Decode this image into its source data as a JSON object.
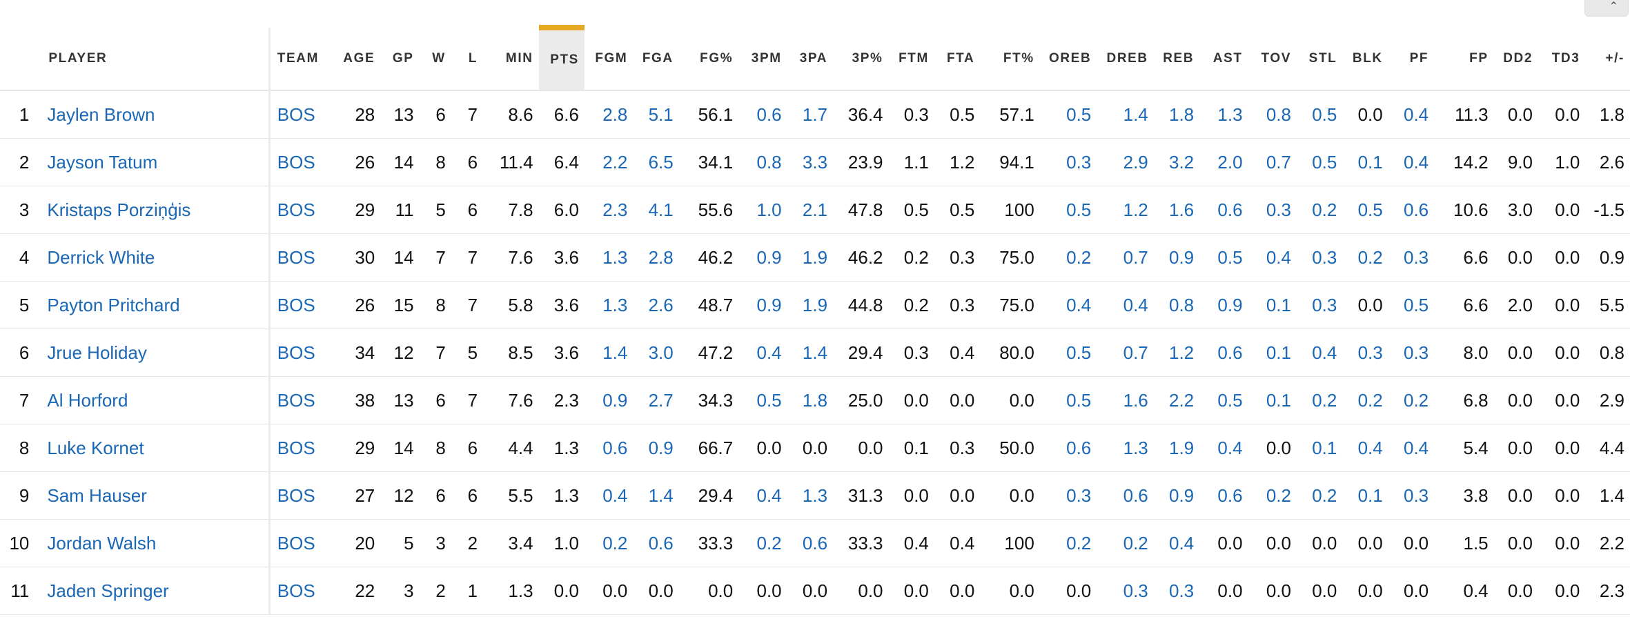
{
  "columns": [
    "",
    "PLAYER",
    "TEAM",
    "AGE",
    "GP",
    "W",
    "L",
    "MIN",
    "PTS",
    "FGM",
    "FGA",
    "FG%",
    "3PM",
    "3PA",
    "3P%",
    "FTM",
    "FTA",
    "FT%",
    "OREB",
    "DREB",
    "REB",
    "AST",
    "TOV",
    "STL",
    "BLK",
    "PF",
    "FP",
    "DD2",
    "TD3",
    "+/-"
  ],
  "sorted_column": "PTS",
  "colors": {
    "link": "#1a67b5",
    "sort_accent": "#e5a823",
    "sorted_bg": "#ebebeb"
  },
  "rows": [
    [
      "1",
      "Jaylen Brown",
      "BOS",
      "28",
      "13",
      "6",
      "7",
      "8.6",
      "6.6",
      "2.8",
      "5.1",
      "56.1",
      "0.6",
      "1.7",
      "36.4",
      "0.3",
      "0.5",
      "57.1",
      "0.5",
      "1.4",
      "1.8",
      "1.3",
      "0.8",
      "0.5",
      "0.0",
      "0.4",
      "11.3",
      "0.0",
      "0.0",
      "1.8"
    ],
    [
      "2",
      "Jayson Tatum",
      "BOS",
      "26",
      "14",
      "8",
      "6",
      "11.4",
      "6.4",
      "2.2",
      "6.5",
      "34.1",
      "0.8",
      "3.3",
      "23.9",
      "1.1",
      "1.2",
      "94.1",
      "0.3",
      "2.9",
      "3.2",
      "2.0",
      "0.7",
      "0.5",
      "0.1",
      "0.4",
      "14.2",
      "9.0",
      "1.0",
      "2.6"
    ],
    [
      "3",
      "Kristaps Porziņģis",
      "BOS",
      "29",
      "11",
      "5",
      "6",
      "7.8",
      "6.0",
      "2.3",
      "4.1",
      "55.6",
      "1.0",
      "2.1",
      "47.8",
      "0.5",
      "0.5",
      "100",
      "0.5",
      "1.2",
      "1.6",
      "0.6",
      "0.3",
      "0.2",
      "0.5",
      "0.6",
      "10.6",
      "3.0",
      "0.0",
      "-1.5"
    ],
    [
      "4",
      "Derrick White",
      "BOS",
      "30",
      "14",
      "7",
      "7",
      "7.6",
      "3.6",
      "1.3",
      "2.8",
      "46.2",
      "0.9",
      "1.9",
      "46.2",
      "0.2",
      "0.3",
      "75.0",
      "0.2",
      "0.7",
      "0.9",
      "0.5",
      "0.4",
      "0.3",
      "0.2",
      "0.3",
      "6.6",
      "0.0",
      "0.0",
      "0.9"
    ],
    [
      "5",
      "Payton Pritchard",
      "BOS",
      "26",
      "15",
      "8",
      "7",
      "5.8",
      "3.6",
      "1.3",
      "2.6",
      "48.7",
      "0.9",
      "1.9",
      "44.8",
      "0.2",
      "0.3",
      "75.0",
      "0.4",
      "0.4",
      "0.8",
      "0.9",
      "0.1",
      "0.3",
      "0.0",
      "0.5",
      "6.6",
      "2.0",
      "0.0",
      "5.5"
    ],
    [
      "6",
      "Jrue Holiday",
      "BOS",
      "34",
      "12",
      "7",
      "5",
      "8.5",
      "3.6",
      "1.4",
      "3.0",
      "47.2",
      "0.4",
      "1.4",
      "29.4",
      "0.3",
      "0.4",
      "80.0",
      "0.5",
      "0.7",
      "1.2",
      "0.6",
      "0.1",
      "0.4",
      "0.3",
      "0.3",
      "8.0",
      "0.0",
      "0.0",
      "0.8"
    ],
    [
      "7",
      "Al Horford",
      "BOS",
      "38",
      "13",
      "6",
      "7",
      "7.6",
      "2.3",
      "0.9",
      "2.7",
      "34.3",
      "0.5",
      "1.8",
      "25.0",
      "0.0",
      "0.0",
      "0.0",
      "0.5",
      "1.6",
      "2.2",
      "0.5",
      "0.1",
      "0.2",
      "0.2",
      "0.2",
      "6.8",
      "0.0",
      "0.0",
      "2.9"
    ],
    [
      "8",
      "Luke Kornet",
      "BOS",
      "29",
      "14",
      "8",
      "6",
      "4.4",
      "1.3",
      "0.6",
      "0.9",
      "66.7",
      "0.0",
      "0.0",
      "0.0",
      "0.1",
      "0.3",
      "50.0",
      "0.6",
      "1.3",
      "1.9",
      "0.4",
      "0.0",
      "0.1",
      "0.4",
      "0.4",
      "5.4",
      "0.0",
      "0.0",
      "4.4"
    ],
    [
      "9",
      "Sam Hauser",
      "BOS",
      "27",
      "12",
      "6",
      "6",
      "5.5",
      "1.3",
      "0.4",
      "1.4",
      "29.4",
      "0.4",
      "1.3",
      "31.3",
      "0.0",
      "0.0",
      "0.0",
      "0.3",
      "0.6",
      "0.9",
      "0.6",
      "0.2",
      "0.2",
      "0.1",
      "0.3",
      "3.8",
      "0.0",
      "0.0",
      "1.4"
    ],
    [
      "10",
      "Jordan Walsh",
      "BOS",
      "20",
      "5",
      "3",
      "2",
      "3.4",
      "1.0",
      "0.2",
      "0.6",
      "33.3",
      "0.2",
      "0.6",
      "33.3",
      "0.4",
      "0.4",
      "100",
      "0.2",
      "0.2",
      "0.4",
      "0.0",
      "0.0",
      "0.0",
      "0.0",
      "0.0",
      "1.5",
      "0.0",
      "0.0",
      "2.2"
    ],
    [
      "11",
      "Jaden Springer",
      "BOS",
      "22",
      "3",
      "2",
      "1",
      "1.3",
      "0.0",
      "0.0",
      "0.0",
      "0.0",
      "0.0",
      "0.0",
      "0.0",
      "0.0",
      "0.0",
      "0.0",
      "0.0",
      "0.3",
      "0.3",
      "0.0",
      "0.0",
      "0.0",
      "0.0",
      "0.0",
      "0.4",
      "0.0",
      "0.0",
      "2.3"
    ]
  ]
}
